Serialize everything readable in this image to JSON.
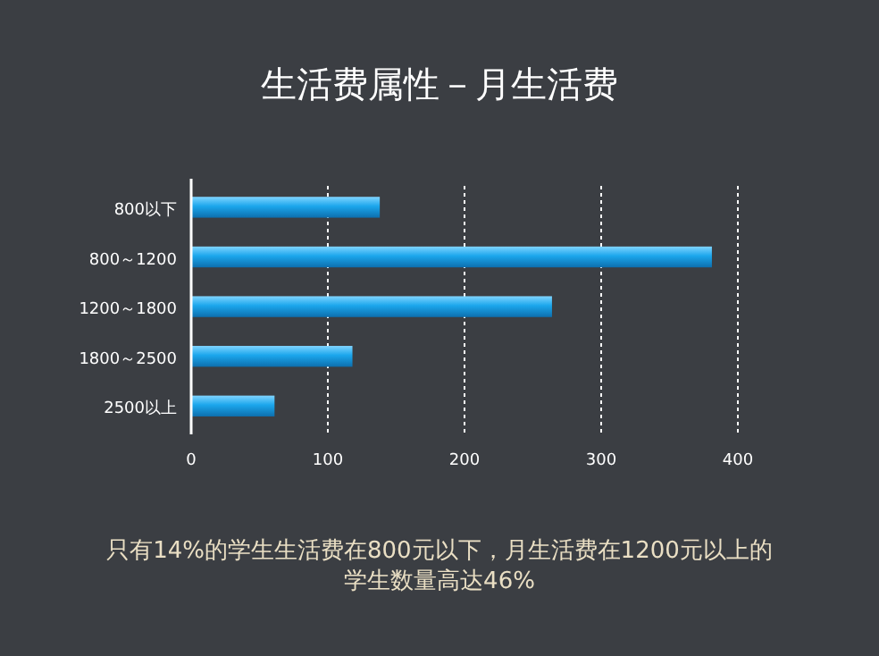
{
  "chart_data": {
    "type": "bar",
    "orientation": "horizontal",
    "title": "生活费属性－月生活费",
    "categories": [
      "800以下",
      "800～1200",
      "1200～1800",
      "1800～2500",
      "2500以上"
    ],
    "values": [
      138,
      381,
      264,
      118,
      61
    ],
    "color": "#1ba6ec",
    "xlim": [
      0,
      400
    ],
    "xticks": [
      0,
      100,
      200,
      300,
      400
    ],
    "grid": "x",
    "annotations": [
      "只有14%的学生生活费在800元以下，月生活费在1200元以上的",
      "学生数量高达46%"
    ]
  }
}
